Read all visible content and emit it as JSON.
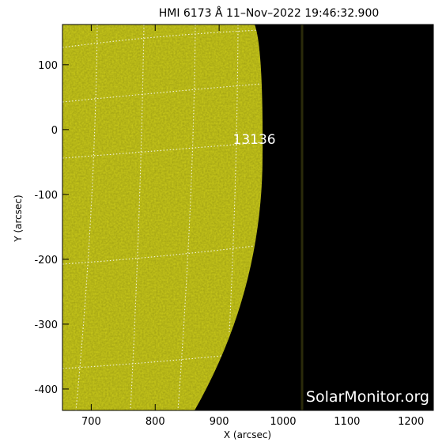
{
  "title": "HMI 6173 Å 11–Nov–2022 19:46:32.900",
  "x_axis": {
    "label": "X (arcsec)",
    "range": [
      655,
      1235
    ],
    "ticks": [
      700,
      800,
      900,
      1000,
      1100,
      1200
    ]
  },
  "y_axis": {
    "label": "Y (arcsec)",
    "range": [
      -433,
      162
    ],
    "ticks": [
      100,
      0,
      -100,
      -200,
      -300,
      -400
    ]
  },
  "active_region": {
    "label": "13136",
    "x": 955,
    "y": -22
  },
  "watermark": "SolarMonitor.org",
  "colors": {
    "sun_disk": "#cccc1a",
    "space": "#000000",
    "grid": "#ffffff",
    "frame": "#000000"
  }
}
